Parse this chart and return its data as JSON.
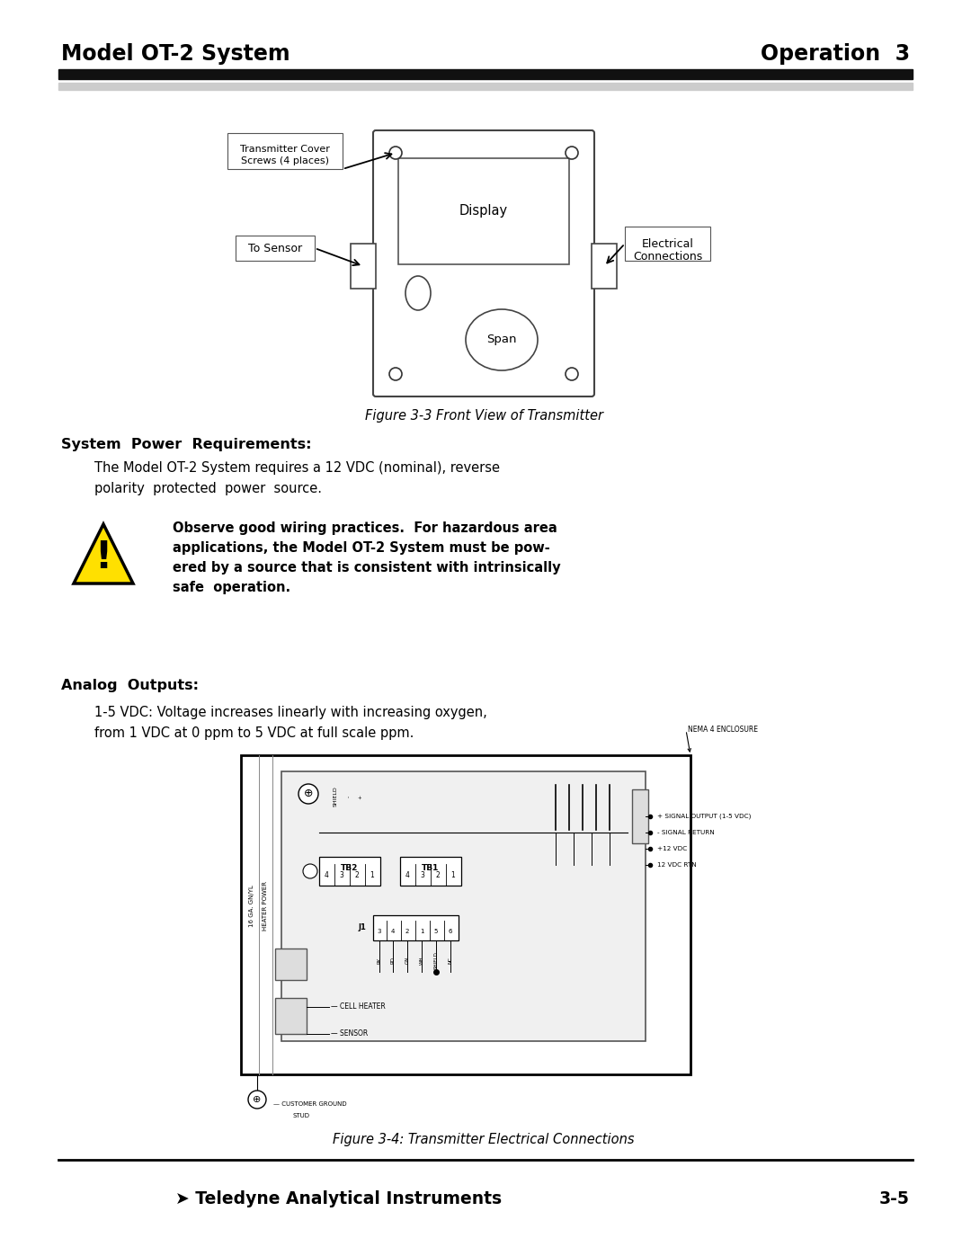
{
  "page_title_left": "Model OT-2 System",
  "page_title_right": "Operation  3",
  "fig1_caption": "Figure 3-3 Front View of Transmitter",
  "fig2_caption": "Figure 3-4: Transmitter Electrical Connections",
  "section1_heading": "System  Power  Requirements:",
  "section1_body1": "The Model OT-2 System requires a 12 VDC (nominal), reverse",
  "section1_body2": "polarity  protected  power  source.",
  "warning_lines": [
    "Observe good wiring practices.  For hazardous area",
    "applications, the Model OT-2 System must be pow-",
    "ered by a source that is consistent with intrinsically",
    "safe  operation."
  ],
  "section2_heading": "Analog  Outputs:",
  "section2_body1": "1-5 VDC: Voltage increases linearly with increasing oxygen,",
  "section2_body2": "from 1 VDC at 0 ppm to 5 VDC at full scale ppm.",
  "footer_left": "➤ Teledyne Analytical Instruments",
  "footer_right": "3-5",
  "bg_color": "#ffffff",
  "header_bar1": "#111111",
  "header_bar2": "#cccccc",
  "warning_yellow": "#FFE000",
  "sig_labels": [
    "+ SIGNAL OUTPUT (1-5 VDC)",
    "- SIGNAL RETURN",
    "+12 VDC",
    "12 VDC RTN"
  ],
  "vert_labels_left": [
    "16 GA. GN/YL",
    "HEATER POWER"
  ]
}
